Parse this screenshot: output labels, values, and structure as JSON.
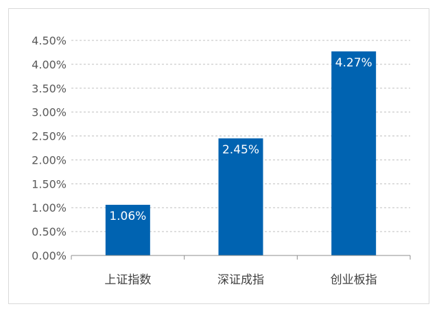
{
  "chart_data": {
    "type": "bar",
    "title": "",
    "xlabel": "",
    "ylabel": "",
    "categories": [
      "上证指数",
      "深证成指",
      "创业板指"
    ],
    "values": [
      1.06,
      2.45,
      4.27
    ],
    "data_labels": [
      "1.06%",
      "2.45%",
      "4.27%"
    ],
    "ylim": [
      0,
      4.5
    ],
    "y_ticks": [
      0,
      0.5,
      1.0,
      1.5,
      2.0,
      2.5,
      3.0,
      3.5,
      4.0,
      4.5
    ],
    "y_tick_labels": [
      "0.00%",
      "0.50%",
      "1.00%",
      "1.50%",
      "2.00%",
      "2.50%",
      "3.00%",
      "3.50%",
      "4.00%",
      "4.50%"
    ],
    "grid": "horizontal-dashed",
    "legend": "none",
    "colors": {
      "bar": "#0063b1",
      "grid": "#bfbfbf",
      "axis": "#8c8c8c",
      "frame": "#d9d9d9"
    }
  }
}
